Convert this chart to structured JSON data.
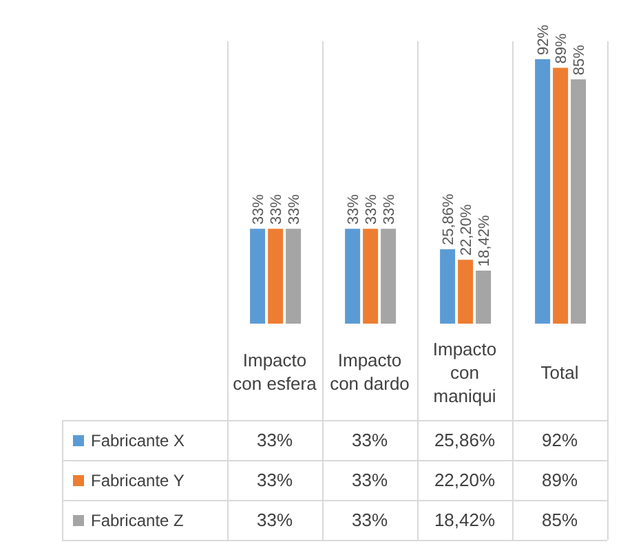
{
  "chart_data": {
    "type": "bar",
    "categories": [
      "Impacto con esfera",
      "Impacto con dardo",
      "Impacto con maniqui",
      "Total"
    ],
    "series": [
      {
        "name": "Fabricante X",
        "color": "#5b9bd5",
        "values": [
          33,
          33,
          25.86,
          92
        ],
        "value_labels": [
          "33%",
          "33%",
          "25,86%",
          "92%"
        ]
      },
      {
        "name": "Fabricante Y",
        "color": "#ed7d31",
        "values": [
          33,
          33,
          22.2,
          89
        ],
        "value_labels": [
          "33%",
          "33%",
          "22,20%",
          "89%"
        ]
      },
      {
        "name": "Fabricante Z",
        "color": "#a5a5a5",
        "values": [
          33,
          33,
          18.42,
          85
        ],
        "value_labels": [
          "33%",
          "33%",
          "18,42%",
          "85%"
        ]
      }
    ],
    "legend": "bottom left"
  }
}
